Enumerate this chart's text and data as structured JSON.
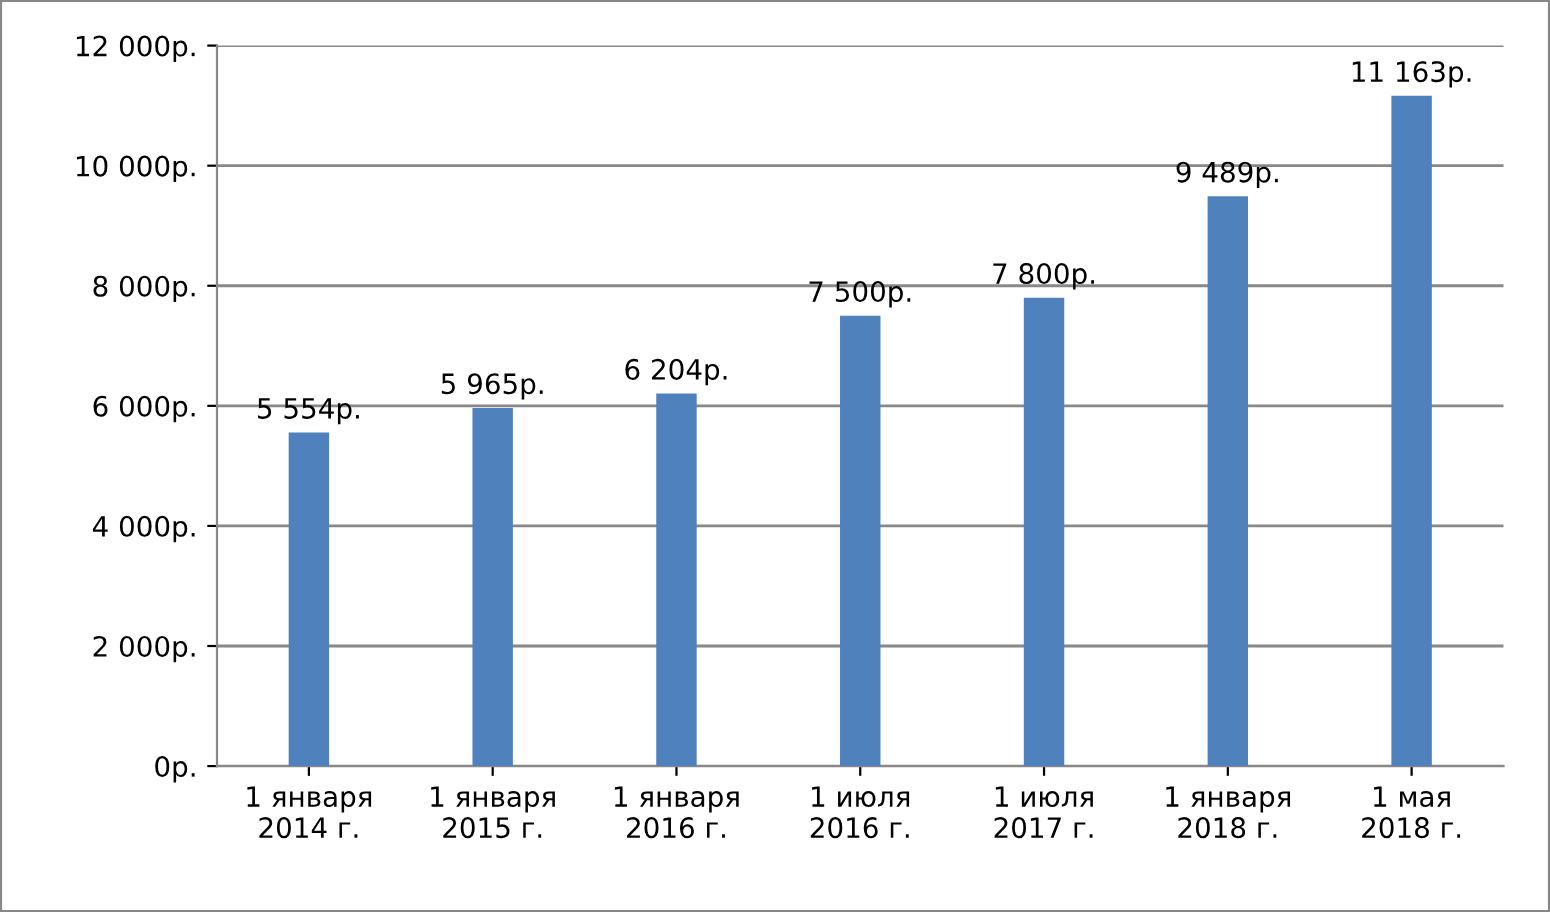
{
  "chart_data": {
    "type": "bar",
    "categories": [
      "1 января\n2014 г.",
      "1 января\n2015 г.",
      "1 января\n2016 г.",
      "1 июля\n2016 г.",
      "1 июля\n2017 г.",
      "1 января\n2018 г.",
      "1 мая\n2018 г."
    ],
    "values": [
      5554,
      5965,
      6204,
      7500,
      7800,
      9489,
      11163
    ],
    "value_labels": [
      "5 554р.",
      "5 965р.",
      "6 204р.",
      "7 500р.",
      "7 800р.",
      "9 489р.",
      "11 163р."
    ],
    "color": "#4f81bd",
    "ylim": [
      0,
      12000
    ],
    "yticks": [
      {
        "value": 0,
        "label": "0р."
      },
      {
        "value": 2000,
        "label": "2 000р."
      },
      {
        "value": 4000,
        "label": "4 000р."
      },
      {
        "value": 6000,
        "label": "6 000р."
      },
      {
        "value": 8000,
        "label": "8 000р."
      },
      {
        "value": 10000,
        "label": "10 000р."
      },
      {
        "value": 12000,
        "label": "12 000р."
      }
    ],
    "grid": "y",
    "legend": false
  }
}
